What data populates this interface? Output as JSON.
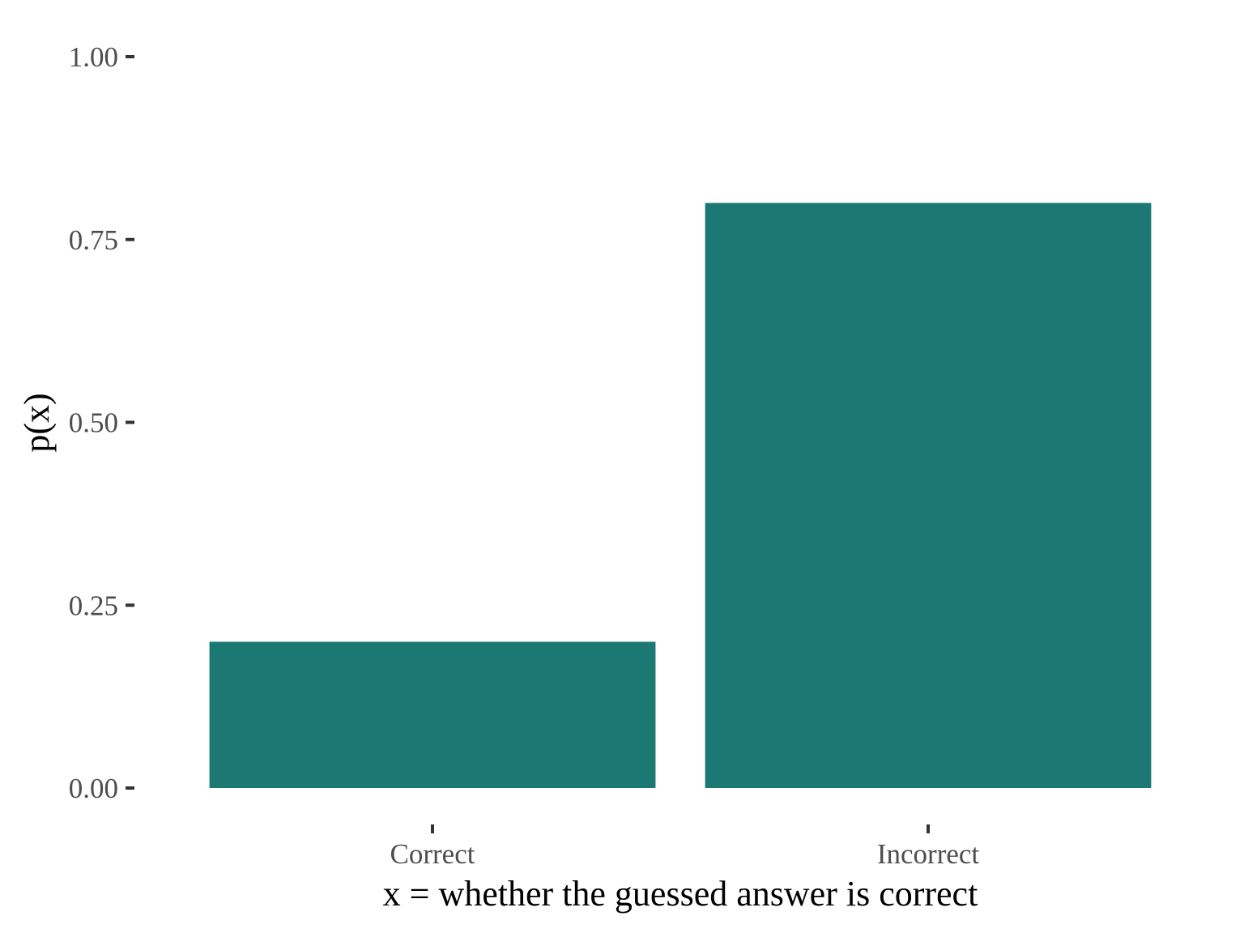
{
  "chart_data": {
    "type": "bar",
    "categories": [
      "Correct",
      "Incorrect"
    ],
    "values": [
      0.2,
      0.8
    ],
    "xlabel": "x = whether the guessed answer is correct",
    "ylabel": "p(x)",
    "ylim": [
      0,
      1
    ],
    "yticks": [
      "0.00",
      "0.25",
      "0.50",
      "0.75",
      "1.00"
    ],
    "ytick_values": [
      0,
      0.25,
      0.5,
      0.75,
      1
    ],
    "grid": false,
    "legend": "none",
    "bar_color": "#1c7873"
  }
}
